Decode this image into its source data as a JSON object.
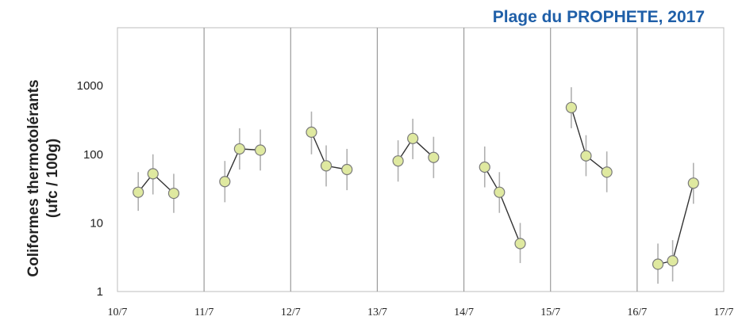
{
  "title": "Plage du PROPHETE, 2017",
  "chart_data": {
    "type": "scatter",
    "title": "Plage du PROPHETE, 2017",
    "ylabel_line1": "Coliformes thermotolérants",
    "ylabel_line2": "(ufc / 100g)",
    "xlabel": "",
    "x_ticks": [
      "10/7",
      "11/7",
      "12/7",
      "13/7",
      "14/7",
      "15/7",
      "16/7",
      "17/7"
    ],
    "xlim": [
      "10/7",
      "17/7"
    ],
    "y_ticks": [
      "1",
      "10",
      "100",
      "1000"
    ],
    "ylim": [
      1,
      7000
    ],
    "yscale": "log",
    "grid": "vertical lines at each day",
    "error_bars": true,
    "series": [
      {
        "day": "10/7",
        "points": [
          {
            "x": "10/7 ~08:00",
            "y": 28,
            "lo": 15,
            "hi": 55
          },
          {
            "x": "10/7 ~12:00",
            "y": 52,
            "lo": 26,
            "hi": 100
          },
          {
            "x": "10/7 ~17:00",
            "y": 27,
            "lo": 14,
            "hi": 52
          }
        ]
      },
      {
        "day": "11/7",
        "points": [
          {
            "x": "11/7 ~08:00",
            "y": 40,
            "lo": 20,
            "hi": 80
          },
          {
            "x": "11/7 ~12:00",
            "y": 120,
            "lo": 60,
            "hi": 240
          },
          {
            "x": "11/7 ~17:00",
            "y": 115,
            "lo": 58,
            "hi": 230
          }
        ]
      },
      {
        "day": "12/7",
        "points": [
          {
            "x": "12/7 ~08:00",
            "y": 210,
            "lo": 100,
            "hi": 420
          },
          {
            "x": "12/7 ~12:00",
            "y": 68,
            "lo": 34,
            "hi": 135
          },
          {
            "x": "12/7 ~17:00",
            "y": 60,
            "lo": 30,
            "hi": 120
          }
        ]
      },
      {
        "day": "13/7",
        "points": [
          {
            "x": "13/7 ~08:00",
            "y": 80,
            "lo": 40,
            "hi": 160
          },
          {
            "x": "13/7 ~12:00",
            "y": 170,
            "lo": 85,
            "hi": 330
          },
          {
            "x": "13/7 ~17:00",
            "y": 90,
            "lo": 45,
            "hi": 180
          }
        ]
      },
      {
        "day": "14/7",
        "points": [
          {
            "x": "14/7 ~08:00",
            "y": 65,
            "lo": 33,
            "hi": 130
          },
          {
            "x": "14/7 ~12:00",
            "y": 28,
            "lo": 14,
            "hi": 55
          },
          {
            "x": "14/7 ~17:00",
            "y": 5,
            "lo": 2.6,
            "hi": 10
          }
        ]
      },
      {
        "day": "15/7",
        "points": [
          {
            "x": "15/7 ~08:00",
            "y": 480,
            "lo": 240,
            "hi": 950
          },
          {
            "x": "15/7 ~12:00",
            "y": 95,
            "lo": 48,
            "hi": 190
          },
          {
            "x": "15/7 ~17:00",
            "y": 55,
            "lo": 28,
            "hi": 110
          }
        ]
      },
      {
        "day": "16/7",
        "points": [
          {
            "x": "16/7 ~08:00",
            "y": 2.5,
            "lo": 1.3,
            "hi": 5
          },
          {
            "x": "16/7 ~12:00",
            "y": 2.8,
            "lo": 1.4,
            "hi": 5.6
          },
          {
            "x": "16/7 ~17:00",
            "y": 38,
            "lo": 19,
            "hi": 75
          }
        ]
      }
    ],
    "colors": {
      "title": "#1f5fa8",
      "marker_fill": "#dfe9a0",
      "marker_stroke": "#7a7a7a",
      "line": "#333333",
      "errorbar": "#b0b0b0",
      "grid": "#9a9a9a",
      "frame": "#bdbdbd"
    }
  }
}
